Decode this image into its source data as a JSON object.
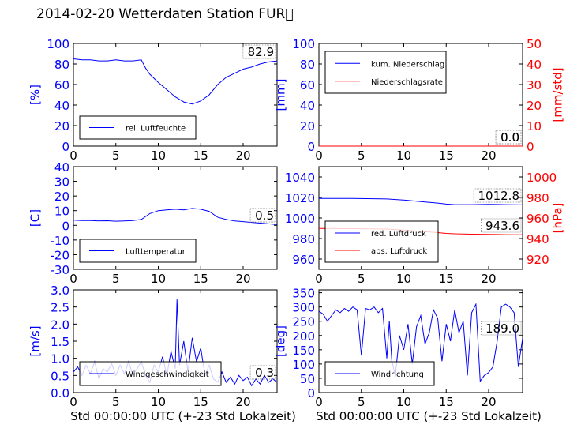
{
  "title": "2014-02-20 Wetterdaten Station FUR\u0000",
  "colors": {
    "primary": "#0000ff",
    "secondary": "#ff0000",
    "axis": "#000000"
  },
  "chart_data": [
    {
      "id": "humidity",
      "type": "line",
      "ylabel": "[%]",
      "ylim": [
        0,
        100
      ],
      "yticks": [
        0,
        20,
        40,
        60,
        80,
        100
      ],
      "xlim": [
        0,
        24
      ],
      "xticks": [
        0,
        5,
        10,
        15,
        20
      ],
      "legend": {
        "position": "lower-left"
      },
      "last_value": "82.9",
      "series": [
        {
          "name": "rel. Luftfeuchte",
          "color": "#0000ff",
          "x": [
            0,
            1,
            2,
            3,
            4,
            5,
            6,
            7,
            8,
            8.5,
            9,
            10,
            11,
            12,
            13,
            14,
            15,
            16,
            17,
            18,
            19,
            20,
            21,
            22,
            23,
            24
          ],
          "y": [
            85,
            84,
            84,
            83,
            83,
            84,
            83,
            83,
            84,
            76,
            70,
            62,
            55,
            48,
            43,
            41,
            44,
            50,
            60,
            67,
            71,
            75,
            77,
            80,
            82,
            83
          ]
        }
      ]
    },
    {
      "id": "precip",
      "type": "line",
      "ylabel": "[mm]",
      "ylim": [
        0,
        100
      ],
      "yticks": [
        0,
        20,
        40,
        60,
        80,
        100
      ],
      "y2label": "[mm/std]",
      "y2lim": [
        0,
        50
      ],
      "y2ticks": [
        0,
        10,
        20,
        30,
        40,
        50
      ],
      "xlim": [
        0,
        24
      ],
      "xticks": [
        0,
        5,
        10,
        15,
        20
      ],
      "legend": {
        "position": "upper-left"
      },
      "last_value": "0.0",
      "last_value_2": "0.0",
      "series": [
        {
          "name": "kum. Niederschlag",
          "color": "#0000ff",
          "axis": "left",
          "x": [
            0,
            24
          ],
          "y": [
            0,
            0
          ]
        },
        {
          "name": "Niederschlagsrate",
          "color": "#ff0000",
          "axis": "right",
          "x": [
            0,
            24
          ],
          "y": [
            0,
            0
          ]
        }
      ]
    },
    {
      "id": "temperature",
      "type": "line",
      "ylabel": "[C]",
      "ylim": [
        -30,
        40
      ],
      "yticks": [
        -30,
        -20,
        -10,
        0,
        10,
        20,
        30,
        40
      ],
      "xlim": [
        0,
        24
      ],
      "xticks": [
        0,
        5,
        10,
        15,
        20
      ],
      "legend": {
        "position": "lower-left"
      },
      "last_value": "0.5",
      "series": [
        {
          "name": "Lufttemperatur",
          "color": "#0000ff",
          "x": [
            0,
            1,
            2,
            3,
            4,
            5,
            6,
            7,
            8,
            9,
            10,
            11,
            12,
            13,
            14,
            15,
            16,
            17,
            18,
            19,
            20,
            21,
            22,
            23,
            24
          ],
          "y": [
            3.5,
            3.3,
            3.2,
            3.0,
            3.1,
            2.8,
            3.0,
            3.2,
            4.0,
            8.0,
            10.0,
            10.5,
            11.0,
            10.5,
            11.5,
            11.0,
            9.5,
            5.5,
            4.0,
            3.0,
            2.5,
            2.0,
            1.5,
            1.0,
            0.5
          ]
        }
      ]
    },
    {
      "id": "pressure",
      "type": "line",
      "ylabel": "",
      "ylim": [
        950,
        1050
      ],
      "yticks": [
        960,
        980,
        1000,
        1020,
        1040
      ],
      "y2label": "[hPa]",
      "y2lim": [
        910,
        1010
      ],
      "y2ticks": [
        920,
        940,
        960,
        980,
        1000
      ],
      "xlim": [
        0,
        24
      ],
      "xticks": [
        0,
        5,
        10,
        15,
        20
      ],
      "legend": {
        "position": "lower-left"
      },
      "last_value": "1012.8",
      "last_value_2": "943.6",
      "series": [
        {
          "name": "red. Luftdruck",
          "color": "#0000ff",
          "axis": "left",
          "x": [
            0,
            4,
            8,
            10,
            12,
            14,
            15,
            16,
            18,
            20,
            22,
            24
          ],
          "y": [
            1019,
            1019,
            1018.5,
            1017.5,
            1016,
            1014.5,
            1013.5,
            1013,
            1013,
            1013.2,
            1013,
            1012.8
          ]
        },
        {
          "name": "abs. Luftdruck",
          "color": "#ff0000",
          "axis": "right",
          "x": [
            0,
            4,
            8,
            10,
            12,
            14,
            15,
            16,
            18,
            20,
            22,
            24
          ],
          "y": [
            949.8,
            949.6,
            949.2,
            948.2,
            947,
            945.8,
            945,
            944.6,
            944.2,
            944,
            943.8,
            943.6
          ]
        }
      ]
    },
    {
      "id": "wind",
      "type": "line",
      "ylabel": "[m/s]",
      "ylim": [
        0,
        3
      ],
      "yticks": [
        0.0,
        0.5,
        1.0,
        1.5,
        2.0,
        2.5,
        3.0
      ],
      "ytick_labels": [
        "0.0",
        "0.5",
        "1.0",
        "1.5",
        "2.0",
        "2.5",
        "3.0"
      ],
      "xlabel": "Std 00:00:00 UTC (+-23 Std Lokalzeit)",
      "xlim": [
        0,
        24
      ],
      "xticks": [
        0,
        5,
        10,
        15,
        20
      ],
      "legend": {
        "position": "lower-left"
      },
      "last_value": "0.3",
      "series": [
        {
          "name": "Windgeschwindigkeit",
          "color": "#0000ff",
          "x": [
            0,
            0.5,
            1,
            1.5,
            2,
            2.5,
            3,
            3.5,
            4,
            4.5,
            5,
            5.5,
            6,
            6.5,
            7,
            7.5,
            8,
            8.5,
            9,
            9.5,
            10,
            10.5,
            11,
            11.5,
            12,
            12.2,
            12.5,
            13,
            13.5,
            14,
            14.5,
            15,
            15.5,
            16,
            16.5,
            17,
            17.5,
            18,
            18.5,
            19,
            19.5,
            20,
            20.5,
            21,
            21.5,
            22,
            22.5,
            23,
            23.5,
            24
          ],
          "y": [
            0.6,
            0.75,
            0.5,
            0.8,
            0.55,
            0.9,
            0.4,
            0.7,
            0.6,
            0.85,
            0.5,
            0.8,
            0.55,
            0.9,
            0.5,
            0.7,
            0.9,
            0.5,
            0.3,
            0.8,
            0.6,
            1.05,
            0.5,
            1.2,
            0.7,
            2.72,
            0.8,
            1.5,
            0.6,
            1.6,
            0.9,
            1.3,
            0.5,
            0.8,
            0.4,
            0.3,
            0.6,
            0.3,
            0.45,
            0.25,
            0.5,
            0.35,
            0.45,
            0.2,
            0.4,
            0.25,
            0.5,
            0.3,
            0.4,
            0.3
          ]
        }
      ]
    },
    {
      "id": "winddir",
      "type": "line",
      "ylabel": "[deg]",
      "ylim": [
        0,
        360
      ],
      "yticks": [
        0,
        50,
        100,
        150,
        200,
        250,
        300,
        350
      ],
      "xlabel": "Std 00:00:00 UTC (+-23 Std Lokalzeit)",
      "xlim": [
        0,
        24
      ],
      "xticks": [
        0,
        5,
        10,
        15,
        20
      ],
      "legend": {
        "position": "lower-left"
      },
      "last_value": "189.0",
      "series": [
        {
          "name": "Windrichtung",
          "color": "#0000ff",
          "x": [
            0,
            0.5,
            1,
            1.5,
            2,
            2.5,
            3,
            3.5,
            4,
            4.5,
            5,
            5.5,
            6,
            6.5,
            7,
            7.5,
            8,
            8.3,
            8.6,
            9,
            9.5,
            10,
            10.5,
            11,
            11.5,
            12,
            12.5,
            13,
            13.5,
            14,
            14.5,
            15,
            15.5,
            16,
            16.5,
            17,
            17.5,
            18,
            18.5,
            19,
            19.5,
            20,
            20.5,
            21,
            21.5,
            22,
            22.5,
            23,
            23.5,
            24
          ],
          "y": [
            285,
            275,
            250,
            270,
            290,
            280,
            295,
            285,
            300,
            290,
            130,
            295,
            290,
            300,
            280,
            295,
            120,
            250,
            110,
            60,
            200,
            150,
            240,
            100,
            230,
            270,
            170,
            210,
            290,
            260,
            110,
            240,
            180,
            290,
            210,
            250,
            60,
            280,
            310,
            40,
            60,
            70,
            90,
            180,
            300,
            310,
            300,
            280,
            90,
            190
          ]
        }
      ]
    }
  ]
}
